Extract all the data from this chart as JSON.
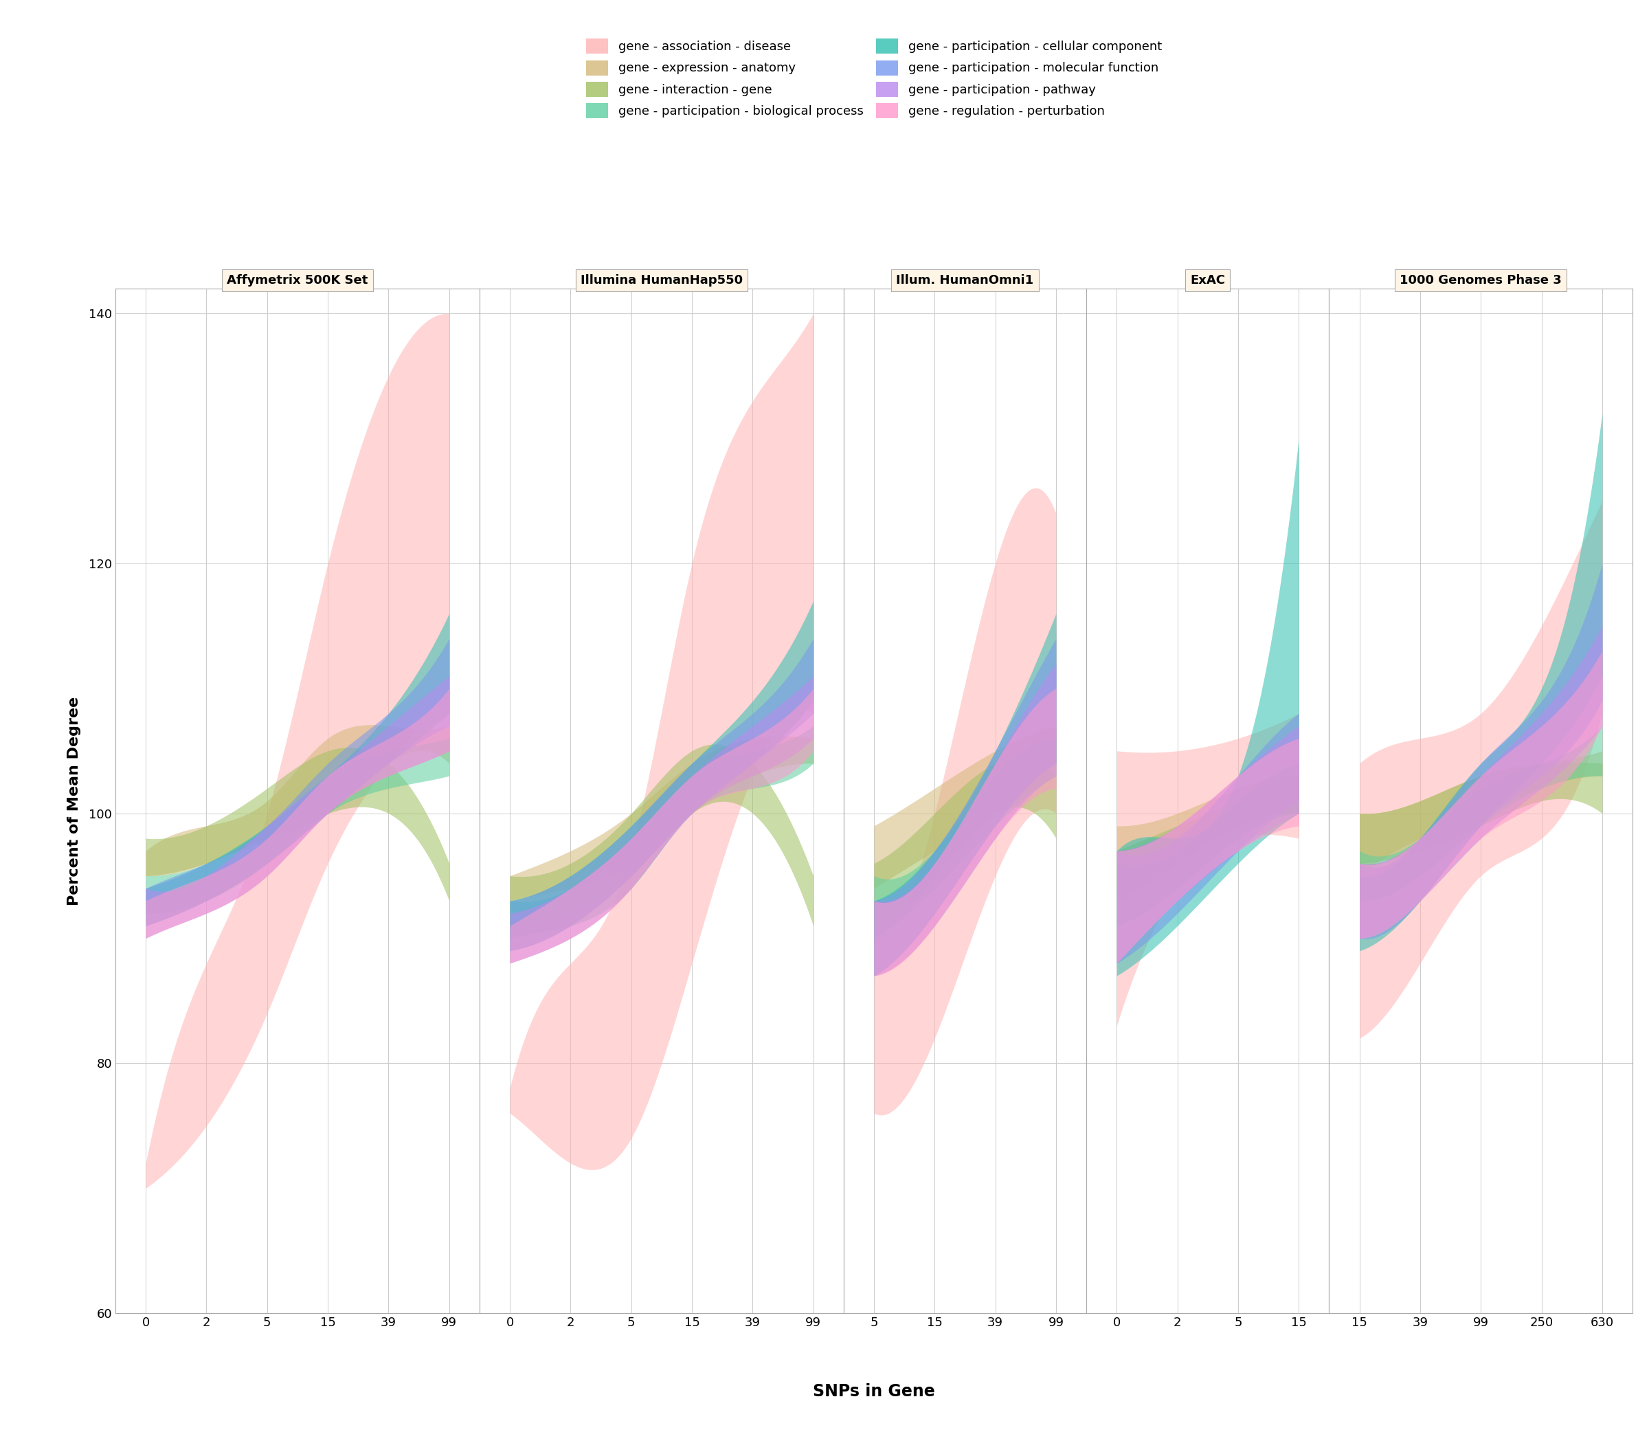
{
  "panels": [
    {
      "title": "Affymetrix 500K Set",
      "x_ticks": [
        0,
        2,
        5,
        15,
        39,
        99
      ],
      "n_ticks": 6
    },
    {
      "title": "Illumina HumanHap550",
      "x_ticks": [
        0,
        2,
        5,
        15,
        39,
        99
      ],
      "n_ticks": 6
    },
    {
      "title": "Illum. HumanOmni1",
      "x_ticks": [
        5,
        15,
        39,
        99
      ],
      "n_ticks": 4
    },
    {
      "title": "ExAC",
      "x_ticks": [
        0,
        2,
        5,
        15
      ],
      "n_ticks": 4
    },
    {
      "title": "1000 Genomes Phase 3",
      "x_ticks": [
        15,
        39,
        99,
        250,
        630
      ],
      "n_ticks": 5
    }
  ],
  "series": [
    {
      "name": "gene - association - disease",
      "color": "#FFB3B3",
      "alpha": 0.55,
      "zorder": 1,
      "data": [
        {
          "panel": 0,
          "x": [
            0,
            1,
            2,
            3,
            4,
            5
          ],
          "ylo": [
            70,
            75,
            84,
            96,
            104,
            110
          ],
          "yhi": [
            72,
            88,
            100,
            120,
            135,
            140
          ]
        },
        {
          "panel": 1,
          "x": [
            0,
            1,
            2,
            3,
            4,
            5
          ],
          "ylo": [
            76,
            72,
            74,
            88,
            103,
            108
          ],
          "yhi": [
            78,
            88,
            97,
            120,
            133,
            140
          ]
        },
        {
          "panel": 2,
          "x": [
            0,
            1,
            2,
            3
          ],
          "ylo": [
            76,
            82,
            95,
            100
          ],
          "yhi": [
            90,
            100,
            120,
            124
          ]
        },
        {
          "panel": 3,
          "x": [
            0,
            1,
            2,
            3
          ],
          "ylo": [
            83,
            94,
            98,
            98
          ],
          "yhi": [
            105,
            105,
            106,
            108
          ]
        },
        {
          "panel": 4,
          "x": [
            0,
            1,
            2,
            3,
            4
          ],
          "ylo": [
            82,
            88,
            95,
            98,
            108
          ],
          "yhi": [
            104,
            106,
            108,
            115,
            125
          ]
        }
      ]
    },
    {
      "name": "gene - expression - anatomy",
      "color": "#D4B87A",
      "alpha": 0.55,
      "zorder": 2,
      "data": [
        {
          "panel": 0,
          "x": [
            0,
            1,
            2,
            3,
            4,
            5
          ],
          "ylo": [
            95,
            96,
            98,
            100,
            104,
            104
          ],
          "yhi": [
            97,
            99,
            101,
            106,
            107,
            107
          ]
        },
        {
          "panel": 1,
          "x": [
            0,
            1,
            2,
            3,
            4,
            5
          ],
          "ylo": [
            93,
            94,
            96,
            100,
            103,
            104
          ],
          "yhi": [
            95,
            97,
            100,
            104,
            106,
            106
          ]
        },
        {
          "panel": 2,
          "x": [
            0,
            1,
            2,
            3
          ],
          "ylo": [
            94,
            97,
            100,
            103
          ],
          "yhi": [
            99,
            102,
            105,
            107
          ]
        },
        {
          "panel": 3,
          "x": [
            0,
            1,
            2,
            3
          ],
          "ylo": [
            94,
            97,
            99,
            101
          ],
          "yhi": [
            99,
            100,
            102,
            103
          ]
        },
        {
          "panel": 4,
          "x": [
            0,
            1,
            2,
            3,
            4
          ],
          "ylo": [
            95,
            98,
            100,
            102,
            103
          ],
          "yhi": [
            100,
            101,
            103,
            104,
            105
          ]
        }
      ]
    },
    {
      "name": "gene - interaction - gene",
      "color": "#A0C060",
      "alpha": 0.55,
      "zorder": 3,
      "data": [
        {
          "panel": 0,
          "x": [
            0,
            1,
            2,
            3,
            4,
            5
          ],
          "ylo": [
            95,
            96,
            98,
            100,
            100,
            93
          ],
          "yhi": [
            98,
            99,
            102,
            105,
            104,
            96
          ]
        },
        {
          "panel": 1,
          "x": [
            0,
            1,
            2,
            3,
            4,
            5
          ],
          "ylo": [
            91,
            92,
            95,
            100,
            100,
            91
          ],
          "yhi": [
            95,
            96,
            100,
            105,
            104,
            95
          ]
        },
        {
          "panel": 2,
          "x": [
            0,
            1,
            2,
            3
          ],
          "ylo": [
            91,
            95,
            100,
            98
          ],
          "yhi": [
            96,
            100,
            104,
            103
          ]
        },
        {
          "panel": 3,
          "x": [
            0,
            1,
            2,
            3
          ],
          "ylo": [
            93,
            96,
            99,
            100
          ],
          "yhi": [
            97,
            99,
            101,
            103
          ]
        },
        {
          "panel": 4,
          "x": [
            0,
            1,
            2,
            3,
            4
          ],
          "ylo": [
            96,
            97,
            99,
            101,
            100
          ],
          "yhi": [
            100,
            101,
            103,
            104,
            104
          ]
        }
      ]
    },
    {
      "name": "gene - participation - biological process",
      "color": "#5ECFA0",
      "alpha": 0.55,
      "zorder": 4,
      "data": [
        {
          "panel": 0,
          "x": [
            0,
            1,
            2,
            3,
            4,
            5
          ],
          "ylo": [
            92,
            93,
            96,
            100,
            102,
            103
          ],
          "yhi": [
            95,
            96,
            99,
            103,
            105,
            106
          ]
        },
        {
          "panel": 1,
          "x": [
            0,
            1,
            2,
            3,
            4,
            5
          ],
          "ylo": [
            90,
            91,
            94,
            100,
            102,
            104
          ],
          "yhi": [
            93,
            94,
            98,
            103,
            105,
            107
          ]
        },
        {
          "panel": 2,
          "x": [
            0,
            1,
            2,
            3
          ],
          "ylo": [
            90,
            94,
            99,
            103
          ],
          "yhi": [
            95,
            97,
            103,
            106
          ]
        },
        {
          "panel": 3,
          "x": [
            0,
            1,
            2,
            3
          ],
          "ylo": [
            91,
            94,
            98,
            100
          ],
          "yhi": [
            96,
            97,
            101,
            104
          ]
        },
        {
          "panel": 4,
          "x": [
            0,
            1,
            2,
            3,
            4
          ],
          "ylo": [
            93,
            95,
            99,
            102,
            103
          ],
          "yhi": [
            97,
            98,
            102,
            104,
            107
          ]
        }
      ]
    },
    {
      "name": "gene - participation - cellular component",
      "color": "#30C0B0",
      "alpha": 0.55,
      "zorder": 5,
      "data": [
        {
          "panel": 0,
          "x": [
            0,
            1,
            2,
            3,
            4,
            5
          ],
          "ylo": [
            91,
            93,
            96,
            100,
            104,
            108
          ],
          "yhi": [
            94,
            96,
            99,
            103,
            108,
            116
          ]
        },
        {
          "panel": 1,
          "x": [
            0,
            1,
            2,
            3,
            4,
            5
          ],
          "ylo": [
            89,
            91,
            95,
            100,
            104,
            109
          ],
          "yhi": [
            93,
            95,
            99,
            104,
            109,
            117
          ]
        },
        {
          "panel": 2,
          "x": [
            0,
            1,
            2,
            3
          ],
          "ylo": [
            87,
            92,
            99,
            104
          ],
          "yhi": [
            93,
            97,
            105,
            116
          ]
        },
        {
          "panel": 3,
          "x": [
            0,
            1,
            2,
            3
          ],
          "ylo": [
            87,
            91,
            96,
            100
          ],
          "yhi": [
            97,
            98,
            103,
            130
          ]
        },
        {
          "panel": 4,
          "x": [
            0,
            1,
            2,
            3,
            4
          ],
          "ylo": [
            89,
            93,
            99,
            104,
            111
          ],
          "yhi": [
            95,
            98,
            104,
            110,
            132
          ]
        }
      ]
    },
    {
      "name": "gene - participation - molecular function",
      "color": "#7799EE",
      "alpha": 0.55,
      "zorder": 6,
      "data": [
        {
          "panel": 0,
          "x": [
            0,
            1,
            2,
            3,
            4,
            5
          ],
          "ylo": [
            91,
            93,
            96,
            100,
            104,
            107
          ],
          "yhi": [
            94,
            96,
            99,
            104,
            108,
            114
          ]
        },
        {
          "panel": 1,
          "x": [
            0,
            1,
            2,
            3,
            4,
            5
          ],
          "ylo": [
            89,
            91,
            95,
            100,
            104,
            108
          ],
          "yhi": [
            93,
            95,
            99,
            104,
            108,
            114
          ]
        },
        {
          "panel": 2,
          "x": [
            0,
            1,
            2,
            3
          ],
          "ylo": [
            87,
            92,
            99,
            104
          ],
          "yhi": [
            93,
            97,
            105,
            114
          ]
        },
        {
          "panel": 3,
          "x": [
            0,
            1,
            2,
            3
          ],
          "ylo": [
            88,
            92,
            97,
            101
          ],
          "yhi": [
            97,
            98,
            103,
            108
          ]
        },
        {
          "panel": 4,
          "x": [
            0,
            1,
            2,
            3,
            4
          ],
          "ylo": [
            90,
            93,
            99,
            103,
            109
          ],
          "yhi": [
            96,
            98,
            104,
            109,
            120
          ]
        }
      ]
    },
    {
      "name": "gene - participation - pathway",
      "color": "#BB88EE",
      "alpha": 0.55,
      "zorder": 7,
      "data": [
        {
          "panel": 0,
          "x": [
            0,
            1,
            2,
            3,
            4,
            5
          ],
          "ylo": [
            90,
            92,
            95,
            100,
            103,
            105
          ],
          "yhi": [
            94,
            95,
            99,
            103,
            107,
            111
          ]
        },
        {
          "panel": 1,
          "x": [
            0,
            1,
            2,
            3,
            4,
            5
          ],
          "ylo": [
            88,
            90,
            94,
            100,
            103,
            106
          ],
          "yhi": [
            92,
            94,
            98,
            103,
            107,
            111
          ]
        },
        {
          "panel": 2,
          "x": [
            0,
            1,
            2,
            3
          ],
          "ylo": [
            87,
            91,
            98,
            103
          ],
          "yhi": [
            93,
            96,
            104,
            112
          ]
        },
        {
          "panel": 3,
          "x": [
            0,
            1,
            2,
            3
          ],
          "ylo": [
            88,
            93,
            97,
            100
          ],
          "yhi": [
            97,
            99,
            103,
            107
          ]
        },
        {
          "panel": 4,
          "x": [
            0,
            1,
            2,
            3,
            4
          ],
          "ylo": [
            90,
            93,
            98,
            102,
            107
          ],
          "yhi": [
            96,
            98,
            103,
            108,
            115
          ]
        }
      ]
    },
    {
      "name": "gene - regulation - perturbation",
      "color": "#FF99CC",
      "alpha": 0.55,
      "zorder": 8,
      "data": [
        {
          "panel": 0,
          "x": [
            0,
            1,
            2,
            3,
            4,
            5
          ],
          "ylo": [
            90,
            92,
            95,
            100,
            103,
            105
          ],
          "yhi": [
            93,
            95,
            98,
            103,
            106,
            110
          ]
        },
        {
          "panel": 1,
          "x": [
            0,
            1,
            2,
            3,
            4,
            5
          ],
          "ylo": [
            88,
            90,
            94,
            100,
            102,
            105
          ],
          "yhi": [
            91,
            94,
            98,
            103,
            106,
            110
          ]
        },
        {
          "panel": 2,
          "x": [
            0,
            1,
            2,
            3
          ],
          "ylo": [
            87,
            91,
            98,
            102
          ],
          "yhi": [
            93,
            96,
            104,
            110
          ]
        },
        {
          "panel": 3,
          "x": [
            0,
            1,
            2,
            3
          ],
          "ylo": [
            88,
            93,
            97,
            99
          ],
          "yhi": [
            97,
            99,
            103,
            106
          ]
        },
        {
          "panel": 4,
          "x": [
            0,
            1,
            2,
            3,
            4
          ],
          "ylo": [
            90,
            93,
            98,
            101,
            107
          ],
          "yhi": [
            96,
            98,
            103,
            107,
            113
          ]
        }
      ]
    }
  ],
  "ylim": [
    60,
    142
  ],
  "yticks": [
    60,
    80,
    100,
    120,
    140
  ],
  "ylabel": "Percent of Mean Degree",
  "xlabel": "SNPs in Gene",
  "panel_header_color": "#FFF5E6",
  "grid_color": "#CCCCCC",
  "background_color": "#FFFFFF"
}
